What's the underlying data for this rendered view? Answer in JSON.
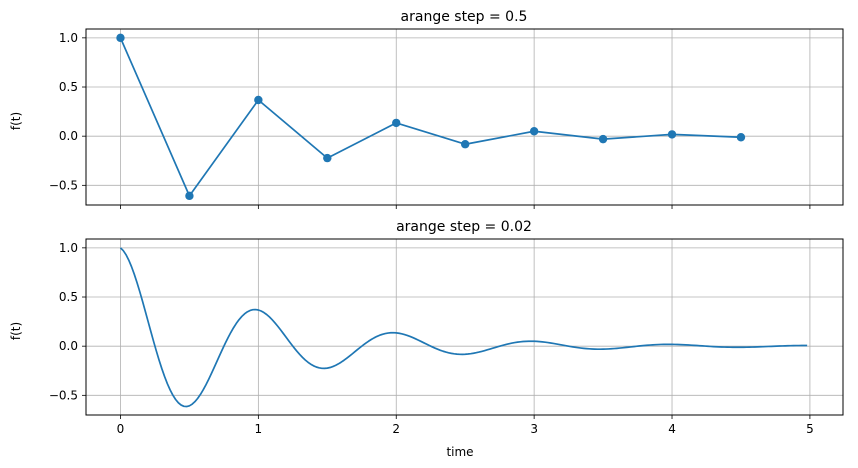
{
  "chart_data": [
    {
      "type": "line",
      "title": "arange step = 0.5",
      "xlabel": "",
      "ylabel": "f(t)",
      "xlim": [
        -0.25,
        5.24
      ],
      "ylim": [
        -0.7,
        1.09
      ],
      "xticks": [
        0,
        1,
        2,
        3,
        4,
        5
      ],
      "xtick_labels": [],
      "yticks": [
        -0.5,
        0.0,
        0.5,
        1.0
      ],
      "ytick_labels": [
        "−0.5",
        "0.0",
        "0.5",
        "1.0"
      ],
      "grid": true,
      "markers": true,
      "color": "#1f77b4",
      "x": [
        0.0,
        0.5,
        1.0,
        1.5,
        2.0,
        2.5,
        3.0,
        3.5,
        4.0,
        4.5
      ],
      "y": [
        1.0,
        -0.607,
        0.368,
        -0.223,
        0.135,
        -0.082,
        0.05,
        -0.03,
        0.018,
        -0.011
      ]
    },
    {
      "type": "line",
      "title": "arange step = 0.02",
      "xlabel": "time",
      "ylabel": "f(t)",
      "xlim": [
        -0.25,
        5.24
      ],
      "ylim": [
        -0.7,
        1.09
      ],
      "xticks": [
        0,
        1,
        2,
        3,
        4,
        5
      ],
      "xtick_labels": [
        "0",
        "1",
        "2",
        "3",
        "4",
        "5"
      ],
      "yticks": [
        -0.5,
        0.0,
        0.5,
        1.0
      ],
      "ytick_labels": [
        "−0.5",
        "0.0",
        "0.5",
        "1.0"
      ],
      "grid": true,
      "markers": false,
      "color": "#1f77b4",
      "x_range": [
        0.0,
        4.98
      ],
      "x_step": 0.02,
      "function": "exp(-t) * cos(2*pi*t)"
    }
  ]
}
